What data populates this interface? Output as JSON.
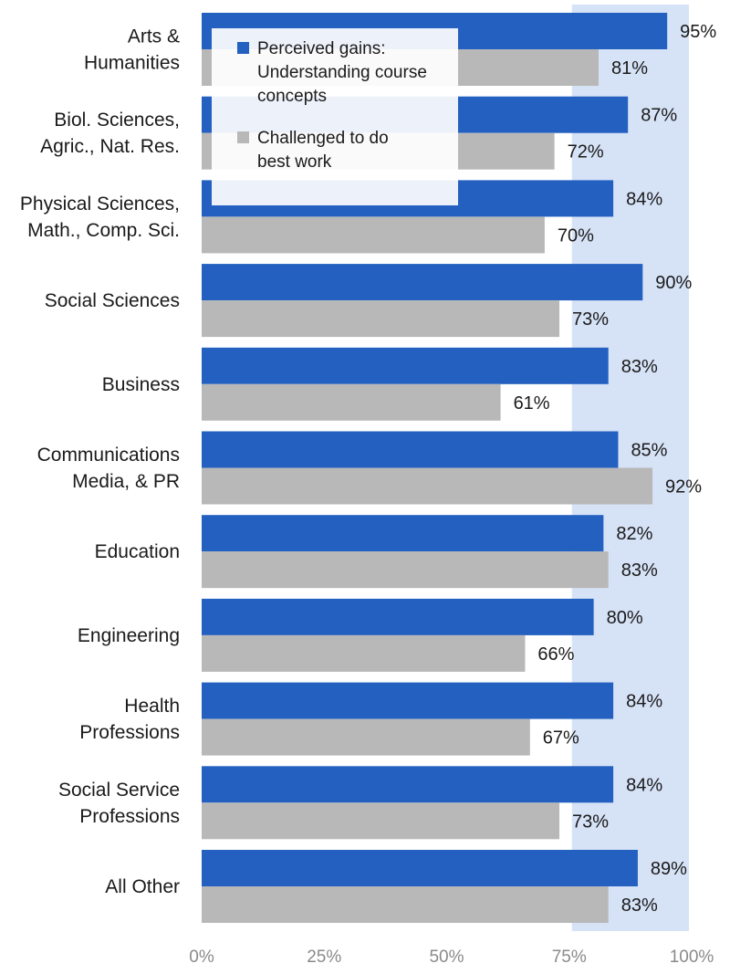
{
  "chart_data": {
    "type": "bar",
    "orientation": "horizontal",
    "categories": [
      [
        "Arts &",
        "Humanities"
      ],
      [
        "Biol. Sciences,",
        "Agric., Nat. Res."
      ],
      [
        "Physical Sciences,",
        "Math., Comp. Sci."
      ],
      [
        "Social Sciences"
      ],
      [
        "Business"
      ],
      [
        "Communications",
        "Media, & PR"
      ],
      [
        "Education"
      ],
      [
        "Engineering"
      ],
      [
        "Health",
        "Professions"
      ],
      [
        "Social Service",
        "Professions"
      ],
      [
        "All Other"
      ]
    ],
    "series": [
      {
        "name": [
          "Perceived gains:",
          "Understanding course",
          "concepts"
        ],
        "color": "#2360c0",
        "values": [
          95,
          87,
          84,
          90,
          83,
          85,
          82,
          80,
          84,
          84,
          89
        ],
        "labels": [
          "95%",
          "87%",
          "84%",
          "90%",
          "83%",
          "85%",
          "82%",
          "80%",
          "84%",
          "84%",
          "89%"
        ]
      },
      {
        "name": [
          "Challenged to do",
          "best work"
        ],
        "color": "#b8b8b8",
        "values": [
          81,
          72,
          70,
          73,
          61,
          92,
          83,
          66,
          67,
          73,
          83
        ],
        "labels": [
          "81%",
          "72%",
          "70%",
          "73%",
          "61%",
          "92%",
          "83%",
          "66%",
          "67%",
          "73%",
          "83%"
        ]
      }
    ],
    "xlim": [
      0,
      100
    ],
    "xticks": [
      "0%",
      "25%",
      "50%",
      "75%",
      "100%"
    ],
    "xtick_values": [
      0,
      25,
      50,
      75,
      100
    ],
    "shaded_band": [
      75,
      100
    ],
    "shade_color": "#d6e2f6",
    "grid": true,
    "legend_position": "top-left (inside plot)"
  }
}
